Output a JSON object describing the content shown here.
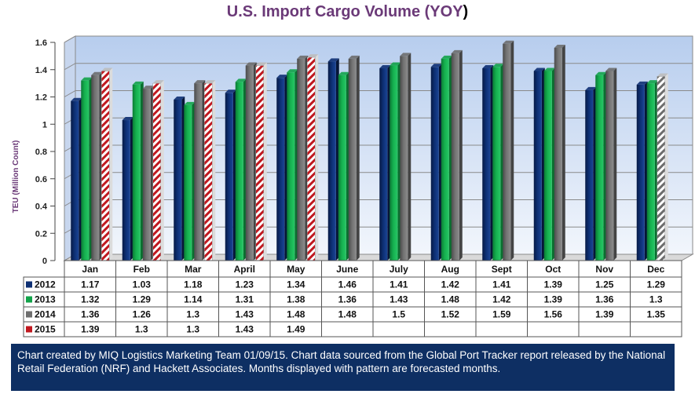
{
  "title": "U.S. Import Cargo Volume (YOY)",
  "title_main": "U.S. Import Cargo Volume (YOY",
  "title_close": ")",
  "note": "Chart created by MIQ Logistics Marketing Team 01/09/15. Chart data sourced from the Global Port Tracker report released by the National Retail Federation (NRF) and Hackett Associates. Months displayed with pattern are forecasted months.",
  "chart_data": {
    "type": "bar",
    "ylabel": "TEU (Million Count)",
    "ylim": [
      0,
      1.6
    ],
    "yticks": [
      "0",
      "0.2",
      "0.4",
      "0.6",
      "0.8",
      "1",
      "1.2",
      "1.4",
      "1.6"
    ],
    "grid": true,
    "legend": "data-table",
    "categories": [
      "Jan",
      "Feb",
      "Mar",
      "April",
      "May",
      "June",
      "July",
      "Aug",
      "Sept",
      "Oct",
      "Nov",
      "Dec"
    ],
    "series": [
      {
        "name": "2012",
        "color": "#0d2f73",
        "values": [
          1.17,
          1.03,
          1.18,
          1.23,
          1.34,
          1.46,
          1.41,
          1.42,
          1.41,
          1.39,
          1.25,
          1.29
        ]
      },
      {
        "name": "2013",
        "color": "#12a34a",
        "values": [
          1.32,
          1.29,
          1.14,
          1.31,
          1.38,
          1.36,
          1.43,
          1.48,
          1.42,
          1.39,
          1.36,
          1.3
        ]
      },
      {
        "name": "2014",
        "color": "#6d6d6d",
        "values": [
          1.36,
          1.26,
          1.3,
          1.43,
          1.48,
          1.48,
          1.5,
          1.52,
          1.59,
          1.56,
          1.39,
          1.35
        ]
      },
      {
        "name": "2015",
        "color": "#c0181f",
        "values": [
          1.39,
          1.3,
          1.3,
          1.43,
          1.49,
          null,
          null,
          null,
          null,
          null,
          null,
          null
        ]
      }
    ],
    "table_labels": [
      [
        "1.17",
        "1.03",
        "1.18",
        "1.23",
        "1.34",
        "1.46",
        "1.41",
        "1.42",
        "1.41",
        "1.39",
        "1.25",
        "1.29"
      ],
      [
        "1.32",
        "1.29",
        "1.14",
        "1.31",
        "1.38",
        "1.36",
        "1.43",
        "1.48",
        "1.42",
        "1.39",
        "1.36",
        "1.3"
      ],
      [
        "1.36",
        "1.26",
        "1.3",
        "1.43",
        "1.48",
        "1.48",
        "1.5",
        "1.52",
        "1.59",
        "1.56",
        "1.39",
        "1.35"
      ],
      [
        "1.39",
        "1.3",
        "1.3",
        "1.43",
        "1.49",
        "",
        "",
        "",
        "",
        "",
        "",
        ""
      ]
    ],
    "forecast": [
      [
        false,
        false,
        false,
        false,
        false,
        false,
        false,
        false,
        false,
        false,
        false,
        false
      ],
      [
        false,
        false,
        false,
        false,
        false,
        false,
        false,
        false,
        false,
        false,
        false,
        false
      ],
      [
        false,
        false,
        false,
        false,
        false,
        false,
        false,
        false,
        false,
        false,
        false,
        true
      ],
      [
        true,
        true,
        true,
        true,
        true,
        false,
        false,
        false,
        false,
        false,
        false,
        false
      ]
    ]
  }
}
